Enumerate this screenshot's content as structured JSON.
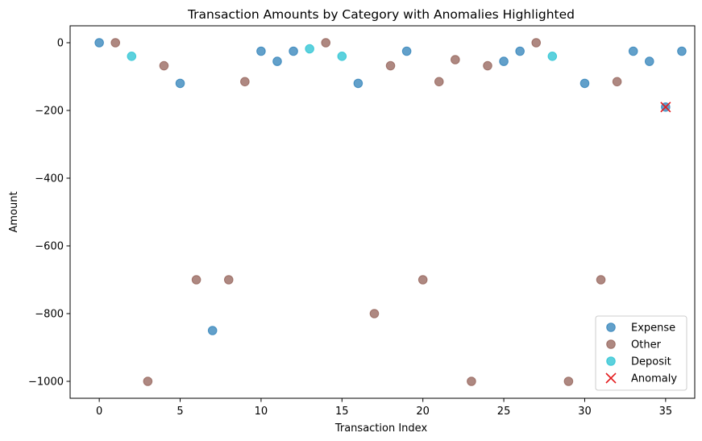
{
  "chart_data": {
    "type": "scatter",
    "title": "Transaction Amounts by Category with Anomalies Highlighted",
    "xlabel": "Transaction Index",
    "ylabel": "Amount",
    "xlim": [
      -1.8,
      36.8
    ],
    "ylim": [
      -1050,
      50
    ],
    "xticks": [
      0,
      5,
      10,
      15,
      20,
      25,
      30,
      35
    ],
    "yticks": [
      0,
      -200,
      -400,
      -600,
      -800,
      -1000
    ],
    "legend_position": "lower-right",
    "grid": false,
    "series": [
      {
        "name": "Expense",
        "color": "#1f77b4",
        "marker": "circle",
        "points": [
          [
            0,
            0
          ],
          [
            5,
            -120
          ],
          [
            7,
            -850
          ],
          [
            10,
            -25
          ],
          [
            11,
            -55
          ],
          [
            12,
            -25
          ],
          [
            16,
            -120
          ],
          [
            19,
            -25
          ],
          [
            25,
            -55
          ],
          [
            26,
            -25
          ],
          [
            30,
            -120
          ],
          [
            33,
            -25
          ],
          [
            34,
            -55
          ],
          [
            35,
            -190
          ],
          [
            36,
            -25
          ]
        ]
      },
      {
        "name": "Other",
        "color": "#8c564b",
        "marker": "circle",
        "points": [
          [
            1,
            0
          ],
          [
            3,
            -1000
          ],
          [
            4,
            -68
          ],
          [
            6,
            -700
          ],
          [
            8,
            -700
          ],
          [
            9,
            -115
          ],
          [
            14,
            0
          ],
          [
            17,
            -800
          ],
          [
            18,
            -68
          ],
          [
            20,
            -700
          ],
          [
            21,
            -115
          ],
          [
            22,
            -50
          ],
          [
            23,
            -1000
          ],
          [
            24,
            -68
          ],
          [
            27,
            0
          ],
          [
            29,
            -1000
          ],
          [
            31,
            -700
          ],
          [
            32,
            -115
          ]
        ]
      },
      {
        "name": "Deposit",
        "color": "#17becf",
        "marker": "circle",
        "points": [
          [
            2,
            -40
          ],
          [
            13,
            -18
          ],
          [
            15,
            -40
          ],
          [
            28,
            -40
          ]
        ]
      },
      {
        "name": "Anomaly",
        "color": "#e31a1c",
        "marker": "x",
        "points": [
          [
            35,
            -190
          ]
        ]
      }
    ]
  }
}
